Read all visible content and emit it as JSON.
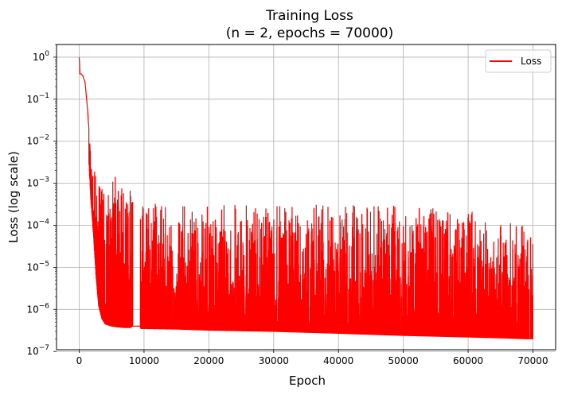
{
  "chart_data": {
    "type": "line",
    "title": "Training Loss",
    "subtitle": "(n = 2, epochs = 70000)",
    "xlabel": "Epoch",
    "ylabel": "Loss (log scale)",
    "xlim": [
      -3500,
      73500
    ],
    "ylim": [
      1.1e-07,
      2.0
    ],
    "yscale": "log",
    "grid": true,
    "legend_position": "top-right",
    "x_ticks": [
      0,
      10000,
      20000,
      30000,
      40000,
      50000,
      60000,
      70000
    ],
    "x_tick_labels": [
      "0",
      "10000",
      "20000",
      "30000",
      "40000",
      "50000",
      "60000",
      "70000"
    ],
    "y_ticks": [
      1e-07,
      1e-06,
      1e-05,
      0.0001,
      0.001,
      0.01,
      0.1,
      1
    ],
    "y_tick_labels": [
      {
        "base": "10",
        "exp": "−7"
      },
      {
        "base": "10",
        "exp": "−6"
      },
      {
        "base": "10",
        "exp": "−5"
      },
      {
        "base": "10",
        "exp": "−4"
      },
      {
        "base": "10",
        "exp": "−3"
      },
      {
        "base": "10",
        "exp": "−2"
      },
      {
        "base": "10",
        "exp": "−1"
      },
      {
        "base": "10",
        "exp": "0"
      }
    ],
    "series": [
      {
        "name": "Loss",
        "color": "#ff0000",
        "envelope": {
          "x": [
            0,
            100,
            300,
            600,
            900,
            1200,
            1500,
            1800,
            2200,
            2600,
            3000,
            3500,
            4000,
            5000,
            6000,
            7000,
            8000,
            8100,
            8300,
            9400,
            9500,
            10000,
            15000,
            20000,
            30000,
            40000,
            50000,
            60000,
            65000,
            69000,
            70000
          ],
          "upper": [
            1.0,
            0.4,
            0.4,
            0.35,
            0.25,
            0.08,
            0.02,
            0.006,
            0.0025,
            0.0015,
            0.0015,
            0.0015,
            0.0015,
            0.0015,
            0.0015,
            0.0015,
            0.0013,
            0.0009,
            0.0004,
            0.0004,
            0.0004,
            0.00035,
            0.00032,
            0.0003,
            0.0003,
            0.0003,
            0.0003,
            0.00025,
            0.00012,
            0.0001,
            0.0001
          ],
          "lower": [
            0.4,
            0.4,
            0.35,
            0.25,
            0.08,
            0.02,
            0.003,
            0.0004,
            6e-05,
            6e-06,
            1.2e-06,
            6e-07,
            4.5e-07,
            4e-07,
            3.8e-07,
            3.7e-07,
            3.7e-07,
            4e-07,
            4e-07,
            4e-07,
            3.5e-07,
            3.5e-07,
            3.4e-07,
            3.2e-07,
            3e-07,
            2.7e-07,
            2.4e-07,
            2.2e-07,
            2.1e-07,
            2e-07,
            2e-07
          ]
        },
        "gap": {
          "from": 8300,
          "to": 9400,
          "value": 4e-07
        }
      }
    ]
  }
}
